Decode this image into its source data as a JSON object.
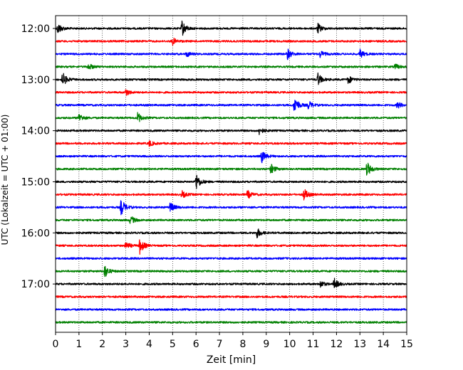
{
  "chart_data": {
    "type": "line",
    "subtype": "helicorder",
    "xlabel": "Zeit  [min]",
    "ylabel": "UTC (Lokalzeit = UTC + 01:00)",
    "xlim": [
      0,
      15
    ],
    "x_ticks": [
      "0",
      "1",
      "2",
      "3",
      "4",
      "5",
      "6",
      "7",
      "8",
      "9",
      "10",
      "11",
      "12",
      "13",
      "14",
      "15"
    ],
    "y_tick_labels": [
      "12:00",
      "13:00",
      "14:00",
      "15:00",
      "16:00",
      "17:00"
    ],
    "grid": "vertical dotted at each minute",
    "trace_colors": [
      "#000000",
      "#ff0000",
      "#0000ff",
      "#008000"
    ],
    "minutes_per_trace": 15,
    "traces": [
      {
        "start": "12:00",
        "color": "#000000",
        "events": [
          {
            "t": 0.1,
            "a": 8
          },
          {
            "t": 5.4,
            "a": 11
          },
          {
            "t": 11.2,
            "a": 7
          }
        ]
      },
      {
        "start": "12:15",
        "color": "#ff0000",
        "events": [
          {
            "t": 5.0,
            "a": 5
          }
        ]
      },
      {
        "start": "12:30",
        "color": "#0000ff",
        "events": [
          {
            "t": 5.6,
            "a": 4
          },
          {
            "t": 9.9,
            "a": 8
          },
          {
            "t": 11.3,
            "a": 5
          },
          {
            "t": 13.0,
            "a": 6
          }
        ]
      },
      {
        "start": "12:45",
        "color": "#008000",
        "events": [
          {
            "t": 1.4,
            "a": 5
          },
          {
            "t": 14.5,
            "a": 4
          }
        ]
      },
      {
        "start": "13:00",
        "color": "#000000",
        "events": [
          {
            "t": 0.3,
            "a": 10
          },
          {
            "t": 11.2,
            "a": 9
          },
          {
            "t": 12.5,
            "a": 6
          }
        ]
      },
      {
        "start": "13:15",
        "color": "#ff0000",
        "events": [
          {
            "t": 3.0,
            "a": 5
          }
        ]
      },
      {
        "start": "13:30",
        "color": "#0000ff",
        "events": [
          {
            "t": 10.2,
            "a": 13
          },
          {
            "t": 10.8,
            "a": 6
          },
          {
            "t": 14.6,
            "a": 5
          }
        ]
      },
      {
        "start": "13:45",
        "color": "#008000",
        "events": [
          {
            "t": 1.0,
            "a": 6
          },
          {
            "t": 3.5,
            "a": 8
          }
        ]
      },
      {
        "start": "14:00",
        "color": "#000000",
        "events": [
          {
            "t": 8.7,
            "a": 5
          }
        ]
      },
      {
        "start": "14:15",
        "color": "#ff0000",
        "events": [
          {
            "t": 4.0,
            "a": 4
          }
        ]
      },
      {
        "start": "14:30",
        "color": "#0000ff",
        "events": [
          {
            "t": 8.8,
            "a": 9
          }
        ]
      },
      {
        "start": "14:45",
        "color": "#008000",
        "events": [
          {
            "t": 9.2,
            "a": 7
          },
          {
            "t": 13.3,
            "a": 11
          }
        ]
      },
      {
        "start": "15:00",
        "color": "#000000",
        "events": [
          {
            "t": 6.0,
            "a": 12
          }
        ]
      },
      {
        "start": "15:15",
        "color": "#ff0000",
        "events": [
          {
            "t": 5.4,
            "a": 5
          },
          {
            "t": 8.2,
            "a": 6
          },
          {
            "t": 10.6,
            "a": 9
          }
        ]
      },
      {
        "start": "15:30",
        "color": "#0000ff",
        "events": [
          {
            "t": 2.8,
            "a": 12
          },
          {
            "t": 4.9,
            "a": 7
          }
        ]
      },
      {
        "start": "15:45",
        "color": "#008000",
        "events": [
          {
            "t": 3.2,
            "a": 6
          }
        ]
      },
      {
        "start": "16:00",
        "color": "#000000",
        "events": [
          {
            "t": 8.6,
            "a": 7
          }
        ]
      },
      {
        "start": "16:15",
        "color": "#ff0000",
        "events": [
          {
            "t": 3.0,
            "a": 6
          },
          {
            "t": 3.6,
            "a": 11
          }
        ]
      },
      {
        "start": "16:30",
        "color": "#0000ff",
        "events": []
      },
      {
        "start": "16:45",
        "color": "#008000",
        "events": [
          {
            "t": 2.1,
            "a": 9
          }
        ]
      },
      {
        "start": "17:00",
        "color": "#000000",
        "events": [
          {
            "t": 11.3,
            "a": 5
          },
          {
            "t": 11.9,
            "a": 8
          }
        ]
      },
      {
        "start": "17:15",
        "color": "#ff0000",
        "events": []
      },
      {
        "start": "17:30",
        "color": "#0000ff",
        "events": []
      },
      {
        "start": "17:45",
        "color": "#008000",
        "events": []
      }
    ]
  }
}
